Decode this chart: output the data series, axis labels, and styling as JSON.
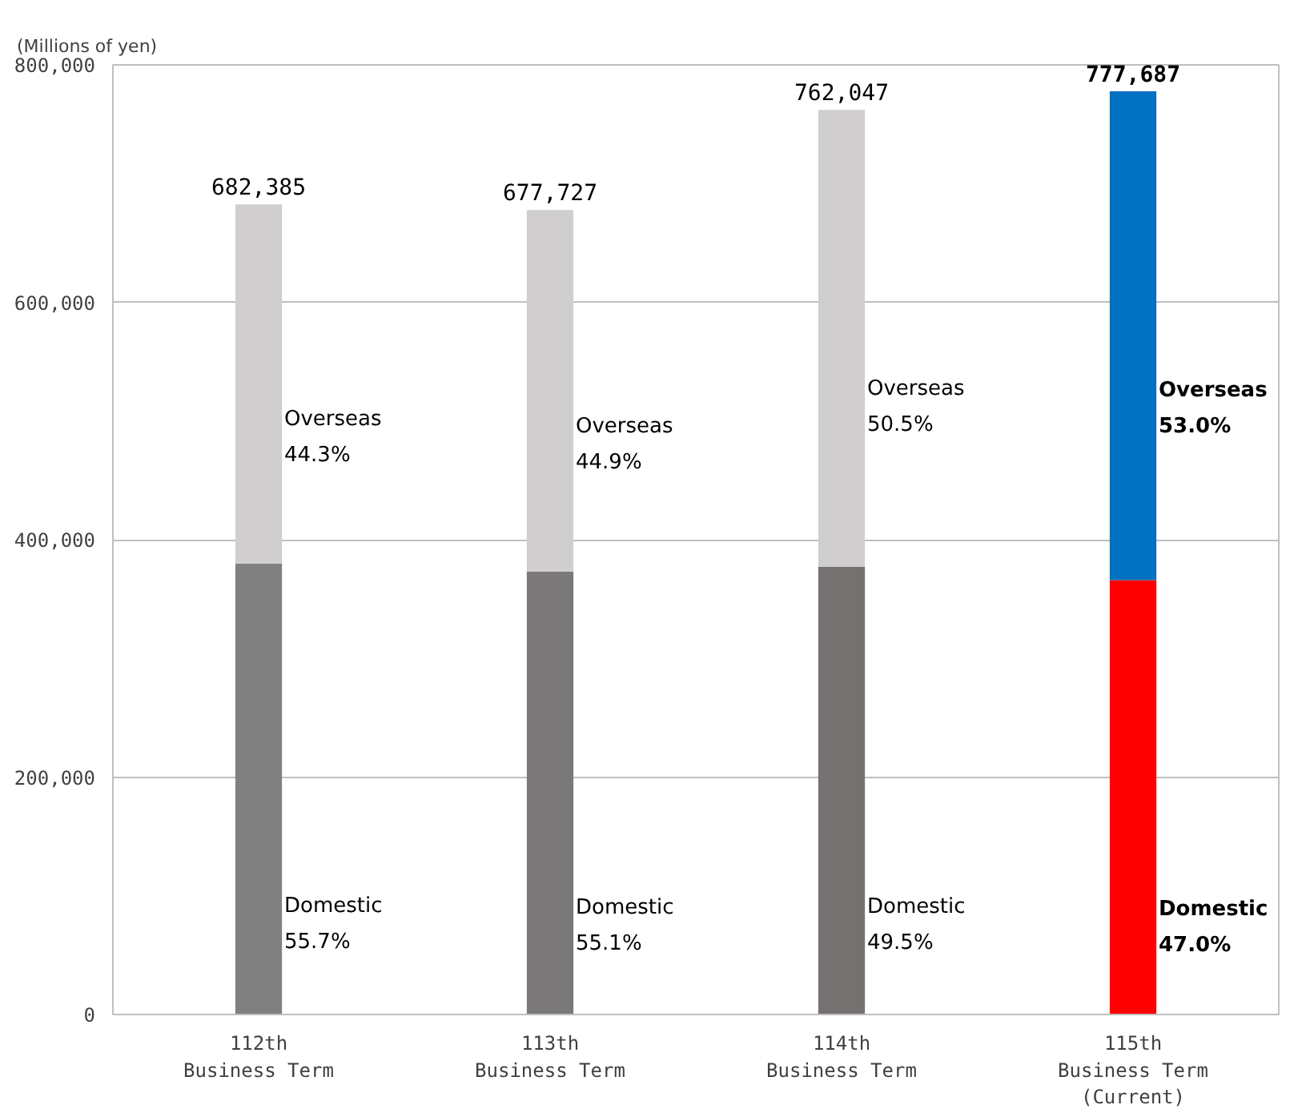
{
  "chart_data": {
    "type": "bar",
    "stacked": true,
    "ylabel": "(Millions of yen)",
    "categories": [
      "112th\nBusiness Term",
      "113th\nBusiness Term",
      "114th\nBusiness Term",
      "115th\nBusiness Term\n(Current)"
    ],
    "series": [
      {
        "colors": [
          "#808080",
          "#7a7878",
          "#767171",
          "#ff0000"
        ],
        "values": [
          380000,
          373000,
          377000,
          366000
        ]
      },
      {
        "colors": [
          "#d0cece",
          "#d0cece",
          "#d0cece",
          "#0070c0"
        ],
        "values": [
          302385,
          304727,
          385047,
          411687
        ]
      }
    ],
    "totals": [
      "682,385",
      "677,727",
      "762,047",
      "777,687"
    ],
    "ylim": [
      0,
      800000
    ],
    "yticks": [
      0,
      {
        "value": 200000,
        "label": "200,000"
      },
      {
        "value": 400000,
        "label": "400,000"
      },
      {
        "value": 600000,
        "label": "600,000"
      },
      {
        "value": 800000,
        "label": "800,000"
      }
    ],
    "grid": "y",
    "annotations": [
      "Overseas\n44.3%",
      "Domestic\n55.7%",
      "Overseas\n44.9%",
      "Domestic\n55.1%",
      "Overseas\n50.5%",
      "Domestic\n49.5%",
      "Overseas\n53.0%",
      "Domestic\n47.0%"
    ]
  }
}
